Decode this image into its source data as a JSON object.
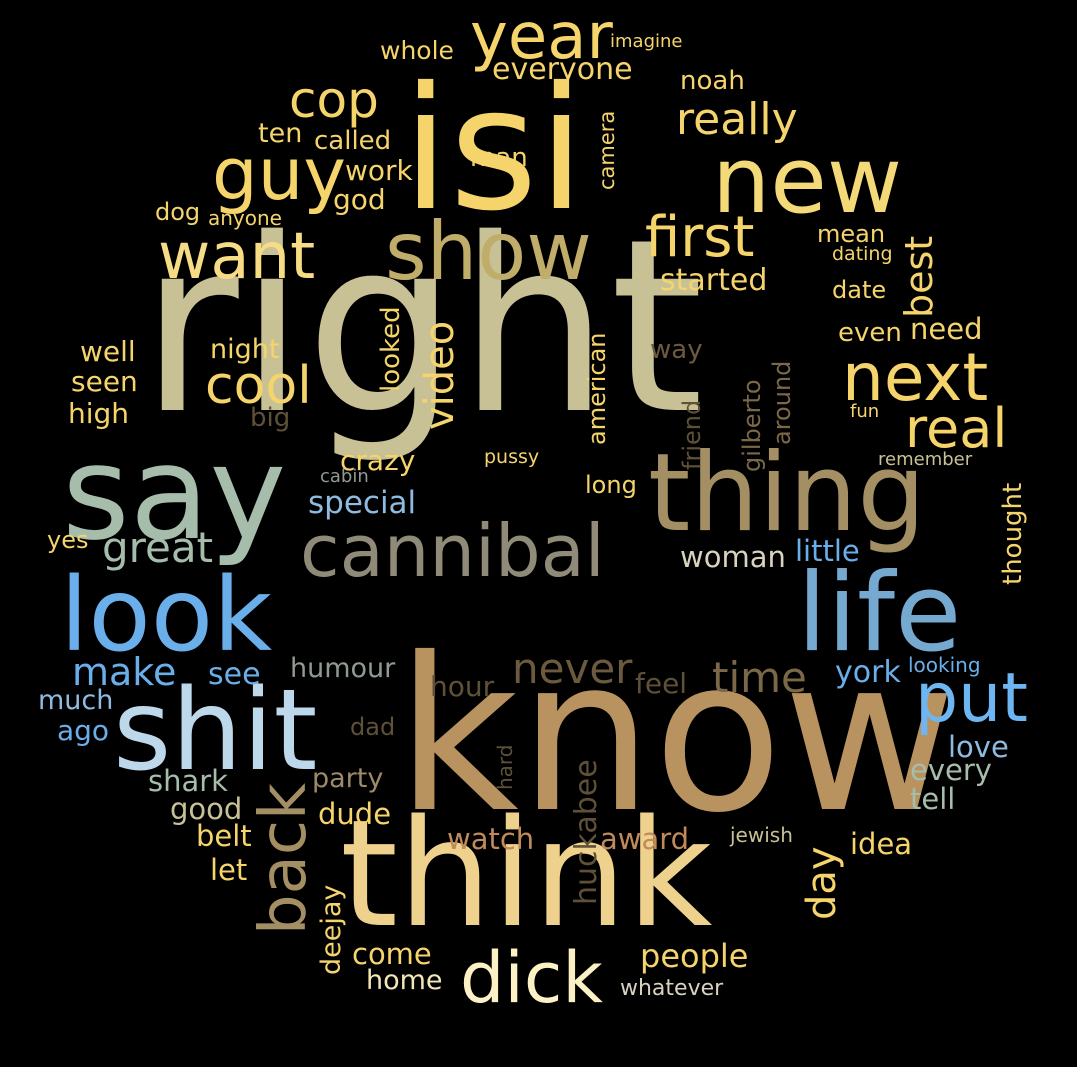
{
  "words": [
    {
      "text": "right",
      "color": "#c8c196"
    },
    {
      "text": "know",
      "color": "#b8935f"
    },
    {
      "text": "isi",
      "color": "#f5d46c"
    },
    {
      "text": "say",
      "color": "#a6bdab"
    },
    {
      "text": "think",
      "color": "#efd18e"
    },
    {
      "text": "thing",
      "color": "#a48f65"
    },
    {
      "text": "life",
      "color": "#76a9cf"
    },
    {
      "text": "look",
      "color": "#6aaeea"
    },
    {
      "text": "shit",
      "color": "#bcd8ea"
    },
    {
      "text": "show",
      "color": "#c0ad6a"
    },
    {
      "text": "new",
      "color": "#f4d978"
    },
    {
      "text": "cannibal",
      "color": "#8f8b78"
    },
    {
      "text": "want",
      "color": "#f6dc84"
    },
    {
      "text": "dick",
      "color": "#fbf1c4"
    },
    {
      "text": "next",
      "color": "#f5d46c"
    },
    {
      "text": "put",
      "color": "#6eb6f2"
    },
    {
      "text": "year",
      "color": "#f5d46c"
    },
    {
      "text": "guy",
      "color": "#f5d46c"
    },
    {
      "text": "first",
      "color": "#f5d46c"
    },
    {
      "text": "back",
      "color": "#a48f65"
    },
    {
      "text": "real",
      "color": "#f5d46c"
    },
    {
      "text": "cool",
      "color": "#f5d46c"
    },
    {
      "text": "cop",
      "color": "#f5d46c"
    },
    {
      "text": "great",
      "color": "#a6bdab"
    },
    {
      "text": "never",
      "color": "#6b5a3e"
    },
    {
      "text": "time",
      "color": "#7a6848"
    },
    {
      "text": "make",
      "color": "#6aaeea"
    },
    {
      "text": "really",
      "color": "#f5d46c"
    },
    {
      "text": "video",
      "color": "#f5d46c"
    },
    {
      "text": "day",
      "color": "#f5d46c"
    },
    {
      "text": "best",
      "color": "#f5d46c"
    },
    {
      "text": "people",
      "color": "#f5d46c"
    },
    {
      "text": "everyone",
      "color": "#f5d46c"
    },
    {
      "text": "special",
      "color": "#8fbbe0"
    },
    {
      "text": "little",
      "color": "#6aaeea"
    },
    {
      "text": "woman",
      "color": "#d9d2c0"
    },
    {
      "text": "huckabee",
      "color": "#5f5038"
    },
    {
      "text": "york",
      "color": "#6aaeea"
    },
    {
      "text": "see",
      "color": "#6aaeea"
    },
    {
      "text": "humour",
      "color": "#8f9b90"
    },
    {
      "text": "hour",
      "color": "#5f5038"
    },
    {
      "text": "feel",
      "color": "#5f5038"
    },
    {
      "text": "award",
      "color": "#c08a5a"
    },
    {
      "text": "watch",
      "color": "#c08a5a"
    },
    {
      "text": "idea",
      "color": "#f5d46c"
    },
    {
      "text": "love",
      "color": "#8fbbe0"
    },
    {
      "text": "every",
      "color": "#a6bdab"
    },
    {
      "text": "tell",
      "color": "#a6bdab"
    },
    {
      "text": "shark",
      "color": "#a6bdab"
    },
    {
      "text": "good",
      "color": "#c8c196"
    },
    {
      "text": "party",
      "color": "#9c8a6a"
    },
    {
      "text": "dude",
      "color": "#f5d46c"
    },
    {
      "text": "belt",
      "color": "#f5d46c"
    },
    {
      "text": "let",
      "color": "#f5d46c"
    },
    {
      "text": "come",
      "color": "#f5d46c"
    },
    {
      "text": "home",
      "color": "#f3e6b8"
    },
    {
      "text": "deejay",
      "color": "#f5d46c"
    },
    {
      "text": "whatever",
      "color": "#d9d2c0"
    },
    {
      "text": "much",
      "color": "#8fbbe0"
    },
    {
      "text": "ago",
      "color": "#6aaeea"
    },
    {
      "text": "dad",
      "color": "#5f5038"
    },
    {
      "text": "hard",
      "color": "#5f5038"
    },
    {
      "text": "jewish",
      "color": "#c8c196"
    },
    {
      "text": "looking",
      "color": "#6aaeea"
    },
    {
      "text": "started",
      "color": "#f5d46c"
    },
    {
      "text": "date",
      "color": "#f5d46c"
    },
    {
      "text": "mean",
      "color": "#f5d46c"
    },
    {
      "text": "dating",
      "color": "#f5d46c"
    },
    {
      "text": "even",
      "color": "#f5d46c"
    },
    {
      "text": "need",
      "color": "#f5d46c"
    },
    {
      "text": "fun",
      "color": "#f5d46c"
    },
    {
      "text": "remember",
      "color": "#c8c196"
    },
    {
      "text": "thought",
      "color": "#f5d46c"
    },
    {
      "text": "around",
      "color": "#7a6848"
    },
    {
      "text": "gilberto",
      "color": "#7a6848"
    },
    {
      "text": "friend",
      "color": "#5f5038"
    },
    {
      "text": "american",
      "color": "#f5d46c"
    },
    {
      "text": "way",
      "color": "#6b5a3e"
    },
    {
      "text": "long",
      "color": "#f5d46c"
    },
    {
      "text": "pussy",
      "color": "#f5d46c"
    },
    {
      "text": "crazy",
      "color": "#f5d46c"
    },
    {
      "text": "cabin",
      "color": "#8f9b90"
    },
    {
      "text": "looked",
      "color": "#f5d46c"
    },
    {
      "text": "night",
      "color": "#f5d46c"
    },
    {
      "text": "big",
      "color": "#5f5038"
    },
    {
      "text": "well",
      "color": "#f5d46c"
    },
    {
      "text": "seen",
      "color": "#f5d46c"
    },
    {
      "text": "high",
      "color": "#f5d46c"
    },
    {
      "text": "yes",
      "color": "#f5d46c"
    },
    {
      "text": "dog",
      "color": "#f5d46c"
    },
    {
      "text": "anyone",
      "color": "#f5d46c"
    },
    {
      "text": "ten",
      "color": "#f5d46c"
    },
    {
      "text": "called",
      "color": "#f5d46c"
    },
    {
      "text": "work",
      "color": "#f5d46c"
    },
    {
      "text": "god",
      "color": "#f5d46c"
    },
    {
      "text": "man",
      "color": "#f5d46c"
    },
    {
      "text": "camera",
      "color": "#f5d46c"
    },
    {
      "text": "whole",
      "color": "#f5d46c"
    },
    {
      "text": "imagine",
      "color": "#f5d46c"
    },
    {
      "text": "noah",
      "color": "#f5d46c"
    }
  ]
}
